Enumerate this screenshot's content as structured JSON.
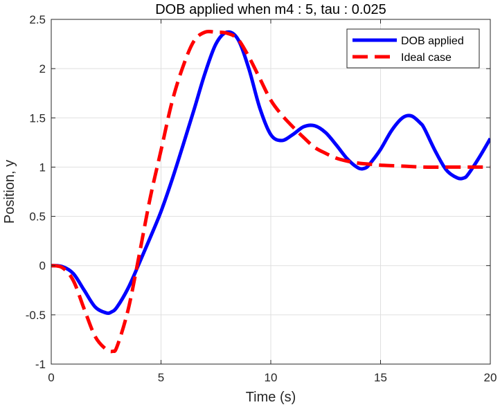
{
  "chart_data": {
    "type": "line",
    "title": "DOB applied when m4 : 5, tau : 0.025",
    "xlabel": "Time (s)",
    "ylabel": "Position, y",
    "xlim": [
      0,
      20
    ],
    "ylim": [
      -1,
      2.5
    ],
    "xticks": [
      0,
      5,
      10,
      15,
      20
    ],
    "xtick_labels": [
      "0",
      "5",
      "10",
      "15",
      "20"
    ],
    "yticks": [
      -1,
      -0.5,
      0,
      0.5,
      1,
      1.5,
      2,
      2.5
    ],
    "ytick_labels": [
      "-1",
      "-0.5",
      "0",
      "0.5",
      "1",
      "1.5",
      "2",
      "2.5"
    ],
    "grid": true,
    "legend_position": "top-right",
    "series": [
      {
        "name": "DOB applied",
        "color": "#0000ff",
        "style": "solid",
        "x": [
          0,
          0.5,
          1,
          1.5,
          2,
          2.5,
          2.75,
          3,
          3.5,
          4,
          4.5,
          5,
          5.5,
          6,
          6.5,
          7,
          7.5,
          8,
          8.5,
          9,
          9.5,
          10,
          10.5,
          11,
          11.5,
          12,
          12.5,
          13,
          13.5,
          14,
          14.3,
          14.5,
          15,
          15.5,
          16,
          16.4,
          16.8,
          17,
          17.5,
          18,
          18.5,
          18.8,
          19,
          19.5,
          20
        ],
        "y": [
          0,
          -0.01,
          -0.08,
          -0.25,
          -0.42,
          -0.48,
          -0.47,
          -0.42,
          -0.23,
          0.02,
          0.28,
          0.55,
          0.87,
          1.22,
          1.58,
          1.95,
          2.25,
          2.37,
          2.3,
          2.0,
          1.6,
          1.33,
          1.27,
          1.33,
          1.41,
          1.42,
          1.35,
          1.22,
          1.08,
          0.99,
          0.99,
          1.03,
          1.18,
          1.37,
          1.5,
          1.52,
          1.45,
          1.39,
          1.16,
          0.97,
          0.89,
          0.89,
          0.93,
          1.1,
          1.29
        ]
      },
      {
        "name": "Ideal case",
        "color": "#ff0000",
        "style": "dashed",
        "x": [
          0,
          0.5,
          1,
          1.5,
          2,
          2.5,
          2.8,
          3,
          3.5,
          4,
          4.5,
          5,
          5.5,
          6,
          6.5,
          7,
          7.5,
          8,
          8.5,
          9,
          9.5,
          10,
          10.5,
          11,
          11.5,
          12,
          12.5,
          13,
          13.5,
          14,
          14.5,
          15,
          16,
          17,
          18,
          19,
          20
        ],
        "y": [
          0,
          -0.02,
          -0.15,
          -0.44,
          -0.72,
          -0.85,
          -0.87,
          -0.82,
          -0.45,
          0.1,
          0.68,
          1.17,
          1.66,
          2.02,
          2.28,
          2.37,
          2.37,
          2.36,
          2.3,
          2.12,
          1.9,
          1.68,
          1.53,
          1.41,
          1.3,
          1.2,
          1.14,
          1.09,
          1.06,
          1.04,
          1.03,
          1.02,
          1.01,
          1.0,
          1.0,
          1.0,
          1.0
        ]
      }
    ]
  }
}
